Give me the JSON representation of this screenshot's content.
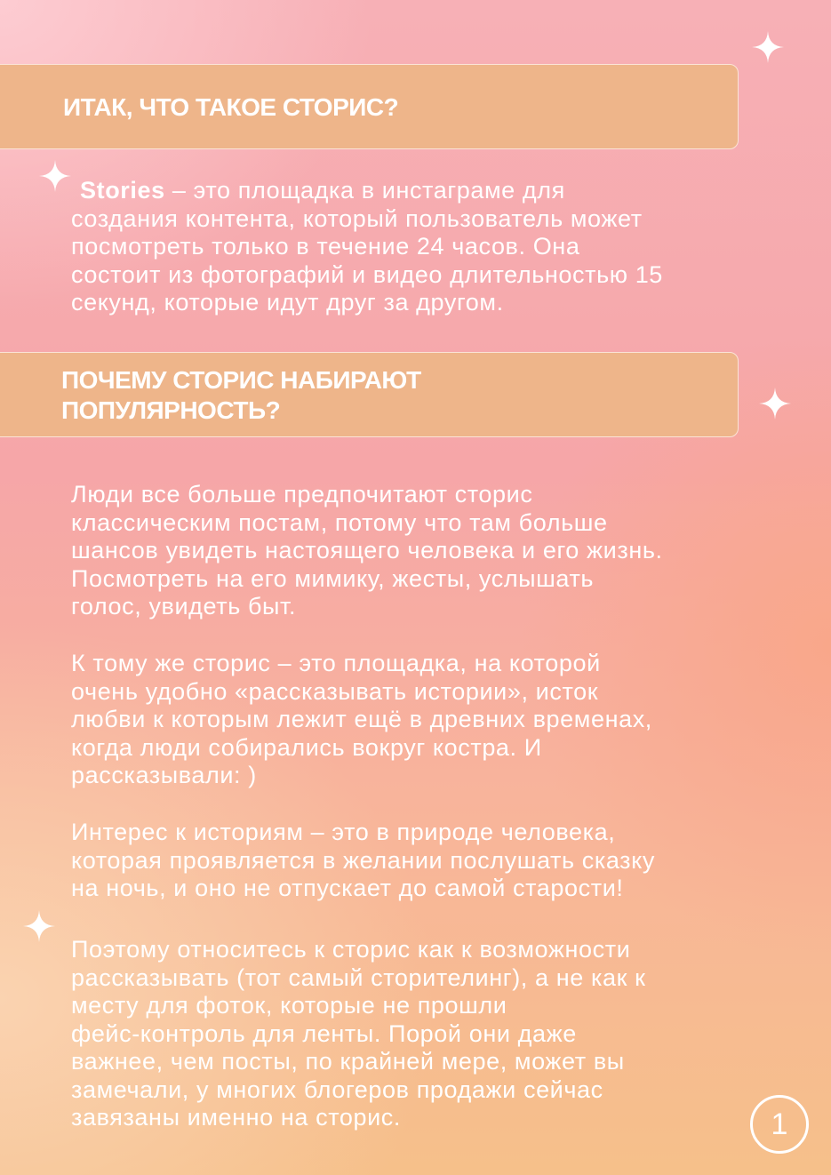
{
  "section1": {
    "heading": "ИТАК, ЧТО ТАКОЕ СТОРИС?",
    "term": "Stories",
    "lines": [
      " – это площадка в инстаграме для",
      "создания контента, который пользователь может",
      "посмотреть только в течение 24 часов. Она",
      "состоит из фотографий и видео длительностью 15",
      "секунд, которые идут друг за другом."
    ]
  },
  "section2": {
    "heading_lines": [
      "ПОЧЕМУ СТОРИС НАБИРАЮТ",
      "ПОПУЛЯРНОСТЬ?"
    ],
    "paragraphs": [
      [
        "Люди все больше предпочитают сторис",
        "классическим постам, потому что там больше",
        "шансов увидеть настоящего человека и его жизнь.",
        "Посмотреть на его мимику, жесты, услышать",
        "голос, увидеть быт."
      ],
      [
        "К тому же сторис – это площадка, на которой",
        "очень удобно «рассказывать истории», исток",
        "любви к которым лежит ещё в древних временах,",
        "когда люди собирались вокруг костра. И",
        "рассказывали: )"
      ],
      [
        "Интерес к историям – это в природе человека,",
        "которая проявляется в желании послушать сказку",
        "на ночь, и оно не отпускает до самой старости!"
      ],
      [
        "Поэтому относитесь к сторис как к возможности",
        "рассказывать (тот самый сторителинг), а не как к",
        "месту для фоток, которые не прошли",
        "фейс-контроль для ленты. Порой они даже",
        "важнее, чем посты, по крайней мере, может вы",
        "замечали, у многих блогеров продажи сейчас",
        "завязаны именно на сторис."
      ]
    ]
  },
  "page_number": "1",
  "colors": {
    "box": "#eeb58a",
    "text": "#ffffff"
  }
}
